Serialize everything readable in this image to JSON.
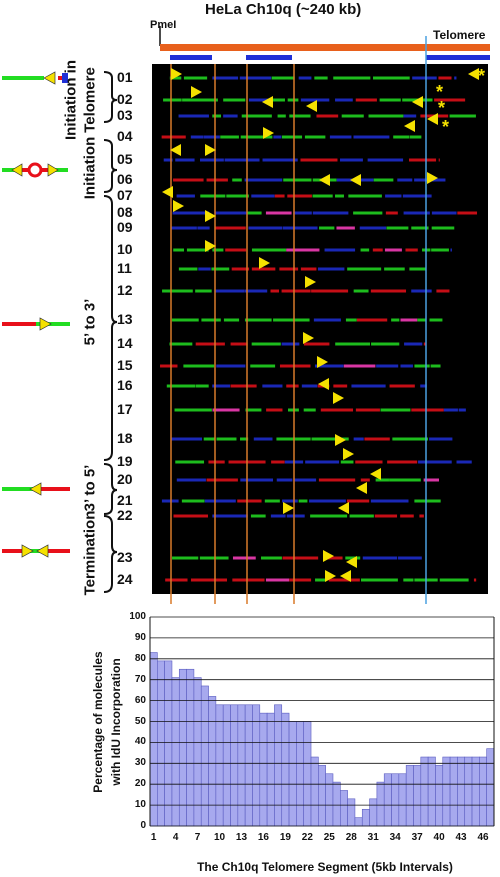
{
  "header": {
    "title": "HeLa Ch10q (~240 kb)",
    "pmel_label": "PmeI",
    "telomere_label": "Telomere"
  },
  "groups": [
    {
      "label_line1": "Initiation in",
      "label_line2": "Telomere"
    },
    {
      "label_line1": "Initiation",
      "label_line2": ""
    },
    {
      "label_line1": "5’ to 3’",
      "label_line2": ""
    },
    {
      "label_line1": "3’ to 5’",
      "label_line2": ""
    },
    {
      "label_line1": "Termination",
      "label_line2": ""
    }
  ],
  "molecules": [
    "01",
    "02",
    "03",
    "04",
    "05",
    "06",
    "07",
    "08",
    "09",
    "10",
    "11",
    "12",
    "13",
    "14",
    "15",
    "16",
    "17",
    "18",
    "19",
    "20",
    "21",
    "22",
    "23",
    "24"
  ],
  "star_symbol": "*",
  "colors": {
    "orange_bar": "#e8601c",
    "blue_bar": "#1f2fd6",
    "green": "#22dd22",
    "red": "#e8101a",
    "yellow": "#f5e100",
    "grid_orange": "#d87a2a",
    "grid_blue": "#4aa0e0",
    "bar_fill": "#a7a9ee"
  },
  "chart_data": {
    "type": "bar",
    "ylabel": "Percentage of molecules with IdU Incorporation",
    "xlabel": "The Ch10q Telomere Segment (5kb Intervals)",
    "ylim": [
      0,
      100
    ],
    "yticks": [
      0,
      10,
      20,
      30,
      40,
      50,
      60,
      70,
      80,
      90,
      100
    ],
    "xtick_labels": [
      "1",
      "4",
      "7",
      "10",
      "13",
      "16",
      "19",
      "22",
      "25",
      "28",
      "31",
      "34",
      "37",
      "40",
      "43",
      "46"
    ],
    "values": [
      83,
      79,
      79,
      71,
      75,
      75,
      71,
      67,
      62,
      58,
      58,
      58,
      58,
      58,
      58,
      54,
      54,
      58,
      54,
      50,
      50,
      50,
      33,
      29,
      25,
      21,
      17,
      13,
      4,
      8,
      13,
      21,
      25,
      25,
      25,
      29,
      29,
      33,
      33,
      29,
      33,
      33,
      33,
      33,
      33,
      33,
      37
    ]
  }
}
